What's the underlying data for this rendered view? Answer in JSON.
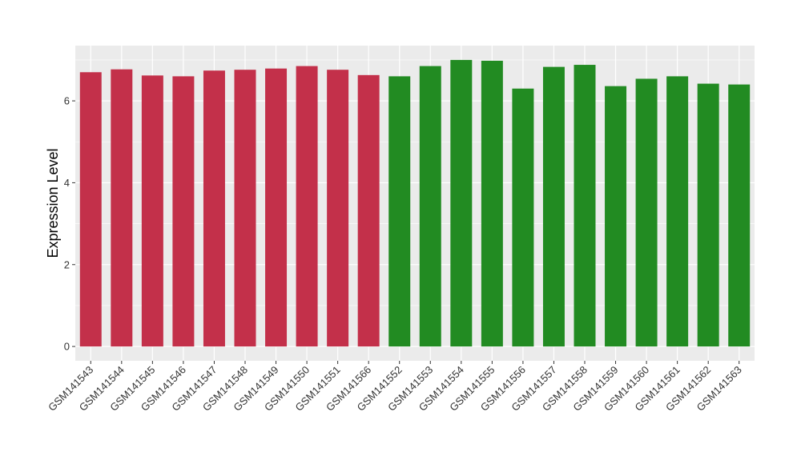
{
  "chart_data": {
    "type": "bar",
    "ylabel": "Expression Level",
    "xlabel": "",
    "ylim": [
      -0.35,
      7.35
    ],
    "yticks": [
      0,
      2,
      4,
      6
    ],
    "grid": true,
    "legend": "none",
    "colors": {
      "group1": "#C3304A",
      "group2": "#228B22",
      "panel": "#EBEBEB",
      "gridline": "#FFFFFF"
    },
    "categories": [
      "GSM141543",
      "GSM141544",
      "GSM141545",
      "GSM141546",
      "GSM141547",
      "GSM141548",
      "GSM141549",
      "GSM141550",
      "GSM141551",
      "GSM141566",
      "GSM141552",
      "GSM141553",
      "GSM141554",
      "GSM141555",
      "GSM141556",
      "GSM141557",
      "GSM141558",
      "GSM141559",
      "GSM141560",
      "GSM141561",
      "GSM141562",
      "GSM141563"
    ],
    "values": [
      6.7,
      6.77,
      6.62,
      6.6,
      6.74,
      6.76,
      6.79,
      6.85,
      6.76,
      6.63,
      6.6,
      6.85,
      7.0,
      6.98,
      6.3,
      6.83,
      6.88,
      6.36,
      6.54,
      6.6,
      6.42,
      6.4
    ],
    "groups": [
      1,
      1,
      1,
      1,
      1,
      1,
      1,
      1,
      1,
      1,
      2,
      2,
      2,
      2,
      2,
      2,
      2,
      2,
      2,
      2,
      2,
      2
    ]
  }
}
